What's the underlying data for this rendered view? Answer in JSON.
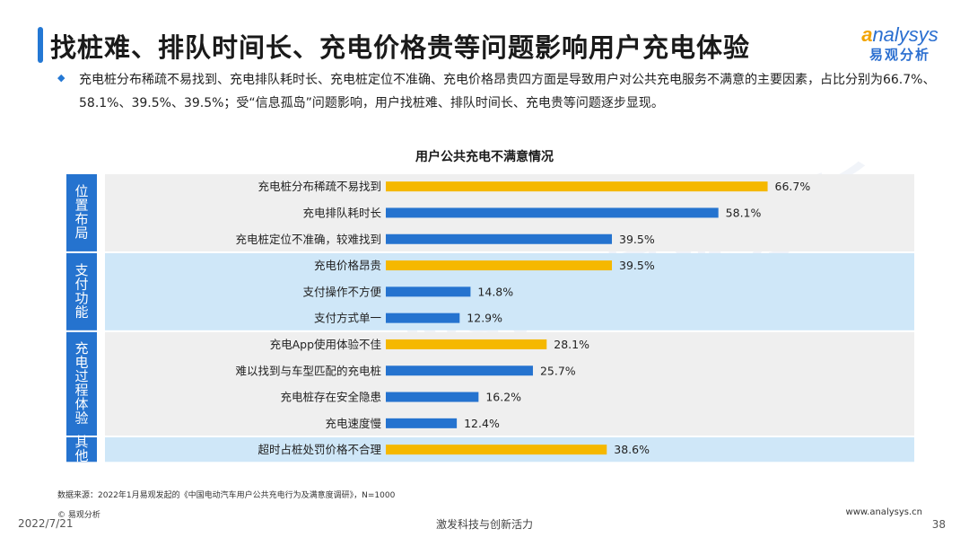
{
  "header": {
    "title": "找桩难、排队时间长、充电价格贵等问题影响用户充电体验",
    "logo_en": "nalysys",
    "logo_en_first": "a",
    "logo_cn": "易观分析",
    "summary": "充电桩分布稀疏不易找到、充电排队耗时长、充电桩定位不准确、充电价格昂贵四方面是导致用户对公共充电服务不满意的主要因素，占比分别为66.7%、58.1%、39.5%、39.5%；受“信息孤岛”问题影响，用户找桩难、排队时间长、充电贵等问题逐步显现。"
  },
  "chart_data": {
    "type": "bar",
    "orientation": "horizontal",
    "title": "用户公共充电不满意情况",
    "unit": "%",
    "groups": [
      {
        "name": "位置布局",
        "categories": [
          "充电桩分布稀疏不易找到",
          "充电排队耗时长",
          "充电桩定位不准确，较难找到"
        ],
        "values": [
          66.7,
          58.1,
          39.5
        ],
        "highlight": [
          true,
          false,
          false
        ]
      },
      {
        "name": "支付功能",
        "categories": [
          "充电价格昂贵",
          "支付操作不方便",
          "支付方式单一"
        ],
        "values": [
          39.5,
          14.8,
          12.9
        ],
        "highlight": [
          true,
          false,
          false
        ]
      },
      {
        "name": "充电过程体验",
        "categories": [
          "充电App使用体验不佳",
          "难以找到与车型匹配的充电桩",
          "充电桩存在安全隐患",
          "充电速度慢"
        ],
        "values": [
          28.1,
          25.7,
          16.2,
          12.4
        ],
        "highlight": [
          true,
          false,
          false,
          false
        ]
      },
      {
        "name": "其他",
        "categories": [
          "超时占桩处罚价格不合理"
        ],
        "values": [
          38.6
        ],
        "highlight": [
          true
        ]
      }
    ],
    "colors": {
      "highlight": "#f5b800",
      "normal": "#2573cf",
      "group_label_bg": "#2573cf",
      "band_gray": "#efefef",
      "band_blue": "#cfe7f8"
    }
  },
  "footer": {
    "source": "数据来源：2022年1月易观发起的《中国电动汽车用户公共充电行为及满意度调研》，N=1000",
    "copyright": "© 易观分析",
    "date": "2022/7/21",
    "slogan": "激发科技与创新活力",
    "url": "www.analysys.cn",
    "page": "38"
  }
}
